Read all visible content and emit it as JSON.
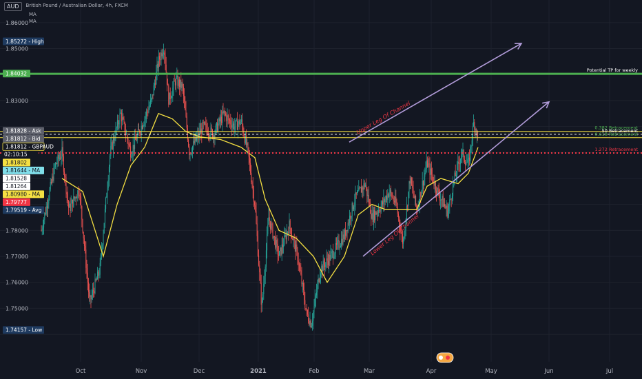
{
  "header": {
    "currency_badge": "AUD",
    "symbol_line": "British Pound / Australian Dollar, 4h, FXCM",
    "indicator_1": "MA",
    "indicator_2": "MA"
  },
  "colors": {
    "background": "#131722",
    "up": "#26a69a",
    "down": "#ef5350",
    "ma": "#f5e042",
    "green_line": "#4caf50",
    "red_line": "#f23645",
    "channel": "#b39ddb",
    "annotation": "#f23645"
  },
  "chart_data": {
    "type": "candlestick",
    "title": "British Pound / Australian Dollar, 4h, FXCM",
    "ylim": [
      1.7302,
      1.865
    ],
    "y_ticks": [
      "1.86000",
      "1.85000",
      "1.83000",
      "1.78000",
      "1.77000",
      "1.76000",
      "1.75000"
    ],
    "x_months": [
      "Oct",
      "Nov",
      "Dec",
      "2021",
      "Feb",
      "Mar",
      "Apr",
      "May",
      "Jun",
      "Jul"
    ],
    "price_path": [
      [
        0,
        1.78
      ],
      [
        20,
        1.805
      ],
      [
        30,
        1.81
      ],
      [
        40,
        1.788
      ],
      [
        55,
        1.796
      ],
      [
        70,
        1.752
      ],
      [
        85,
        1.765
      ],
      [
        100,
        1.81
      ],
      [
        115,
        1.825
      ],
      [
        130,
        1.81
      ],
      [
        145,
        1.82
      ],
      [
        160,
        1.83
      ],
      [
        170,
        1.845
      ],
      [
        178,
        1.851
      ],
      [
        185,
        1.83
      ],
      [
        195,
        1.838
      ],
      [
        205,
        1.835
      ],
      [
        215,
        1.81
      ],
      [
        225,
        1.815
      ],
      [
        235,
        1.82
      ],
      [
        250,
        1.817
      ],
      [
        265,
        1.825
      ],
      [
        280,
        1.82
      ],
      [
        290,
        1.822
      ],
      [
        300,
        1.81
      ],
      [
        310,
        1.79
      ],
      [
        320,
        1.75
      ],
      [
        330,
        1.785
      ],
      [
        345,
        1.77
      ],
      [
        360,
        1.782
      ],
      [
        372,
        1.77
      ],
      [
        385,
        1.748
      ],
      [
        392,
        1.744
      ],
      [
        405,
        1.765
      ],
      [
        420,
        1.77
      ],
      [
        440,
        1.778
      ],
      [
        455,
        1.792
      ],
      [
        470,
        1.798
      ],
      [
        480,
        1.785
      ],
      [
        495,
        1.79
      ],
      [
        505,
        1.795
      ],
      [
        515,
        1.79
      ],
      [
        525,
        1.775
      ],
      [
        535,
        1.8
      ],
      [
        545,
        1.788
      ],
      [
        560,
        1.806
      ],
      [
        575,
        1.795
      ],
      [
        590,
        1.787
      ],
      [
        600,
        1.8
      ],
      [
        610,
        1.81
      ],
      [
        620,
        1.805
      ],
      [
        628,
        1.822
      ],
      [
        634,
        1.815
      ]
    ],
    "moving_average": [
      [
        30,
        1.8
      ],
      [
        60,
        1.795
      ],
      [
        90,
        1.77
      ],
      [
        110,
        1.79
      ],
      [
        130,
        1.805
      ],
      [
        150,
        1.812
      ],
      [
        170,
        1.825
      ],
      [
        190,
        1.823
      ],
      [
        210,
        1.818
      ],
      [
        230,
        1.816
      ],
      [
        260,
        1.815
      ],
      [
        290,
        1.812
      ],
      [
        310,
        1.808
      ],
      [
        325,
        1.792
      ],
      [
        345,
        1.78
      ],
      [
        370,
        1.777
      ],
      [
        395,
        1.77
      ],
      [
        415,
        1.76
      ],
      [
        440,
        1.77
      ],
      [
        460,
        1.786
      ],
      [
        480,
        1.79
      ],
      [
        500,
        1.788
      ],
      [
        520,
        1.788
      ],
      [
        545,
        1.788
      ],
      [
        560,
        1.797
      ],
      [
        580,
        1.8
      ],
      [
        605,
        1.798
      ],
      [
        620,
        1.802
      ],
      [
        634,
        1.812
      ]
    ],
    "price_axis_labels": [
      {
        "value": 1.85272,
        "label": "1.85272",
        "tag": "High",
        "color": "#1e3a5f",
        "text_color": "#ffffff"
      },
      {
        "value": 1.84032,
        "label": "1.84032",
        "tag": "",
        "color": "#4caf50",
        "text_color": "#ffffff"
      },
      {
        "value": 1.81828,
        "label": "1.81828",
        "tag": "Ask",
        "color": "#5d606b",
        "text_color": "#ffffff"
      },
      {
        "value": 1.81812,
        "label": "1.81812",
        "tag": "Bid",
        "color": "#5d606b",
        "text_color": "#ffffff"
      },
      {
        "value": 1.81812,
        "label": "1.81812",
        "tag": "GBPAUD",
        "color": "#131722",
        "text_color": "#ffffff",
        "border": "#f5e042"
      },
      {
        "value": 1.81802,
        "label": "1.81802",
        "tag": "",
        "color": "#f5e042",
        "text_color": "#131722"
      },
      {
        "value": 1.81644,
        "label": "1.81644",
        "tag": "MA",
        "color": "#80deea",
        "text_color": "#131722"
      },
      {
        "value": 1.81528,
        "label": "1.81528",
        "tag": "",
        "color": "#ffffff",
        "text_color": "#131722"
      },
      {
        "value": 1.81264,
        "label": "1.81264",
        "tag": "",
        "color": "#ffffff",
        "text_color": "#131722"
      },
      {
        "value": 1.8098,
        "label": "1.80980",
        "tag": "MA",
        "color": "#f5e042",
        "text_color": "#131722"
      },
      {
        "value": 1.79777,
        "label": "1.79777",
        "tag": "",
        "color": "#f23645",
        "text_color": "#ffffff"
      },
      {
        "value": 1.79519,
        "label": "1.79519",
        "tag": "Avg",
        "color": "#1e3a5f",
        "text_color": "#ffffff"
      },
      {
        "value": 1.74157,
        "label": "1.74157",
        "tag": "Low",
        "color": "#1e3a5f",
        "text_color": "#ffffff"
      }
    ],
    "countdown": "02:10:15",
    "horizontal_levels": [
      {
        "value": 1.8403,
        "color": "#4caf50",
        "style": "solid",
        "width": 3,
        "label": "Potential TP for weekly",
        "label_color": "#ffffff"
      },
      {
        "value": 1.8181,
        "color": "#f5e042",
        "style": "solid",
        "width": 1,
        "label": "0.382 Retracement",
        "label_color": "#4caf50"
      },
      {
        "value": 1.817,
        "color": "#ffffff",
        "style": "dashed",
        "width": 1,
        "label": "50 Retracement",
        "label_color": "#ffffff"
      },
      {
        "value": 1.8157,
        "color": "#f5e042",
        "style": "solid",
        "width": 1,
        "label": "0.618 Retracement",
        "label_color": "#4caf50"
      },
      {
        "value": 1.8098,
        "color": "#f23645",
        "style": "dotted",
        "width": 2,
        "label": "1.272  Retracement",
        "label_color": "#f23645"
      }
    ],
    "channel_lines": [
      {
        "name": "upper",
        "from": [
          507,
          1.814
        ],
        "to": [
          757,
          1.852
        ],
        "label": "Upper Leg Of Channel"
      },
      {
        "name": "lower",
        "from": [
          527,
          1.77
        ],
        "to": [
          797,
          1.8295
        ],
        "label": "Lower Leg Of Channel"
      }
    ]
  }
}
